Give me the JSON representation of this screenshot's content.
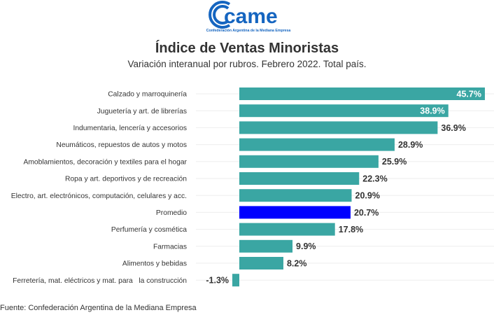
{
  "logo": {
    "name": "came",
    "tagline": "Confederación Argentina de la Mediana Empresa",
    "color": "#1565c0"
  },
  "header": {
    "title": "Índice de Ventas Minoristas",
    "subtitle": "Variación interanual por rubros. Febrero 2022. Total país."
  },
  "footer": {
    "source": "Fuente: Confederación Argentina de la Mediana Empresa"
  },
  "chart_data": {
    "type": "bar",
    "orientation": "horizontal",
    "title": "Índice de Ventas Minoristas",
    "subtitle": "Variación interanual por rubros. Febrero 2022. Total país.",
    "xlabel": "",
    "ylabel": "",
    "unit": "%",
    "xlim": [
      -1.3,
      45.7
    ],
    "grid": true,
    "legend": "none",
    "categories": [
      "Calzado y marroquinería",
      "Juguetería y art. de librerías",
      "Indumentaria, lencería y accesorios",
      "Neumáticos, repuestos de autos y motos",
      "Amoblamientos, decoración y textiles para el hogar",
      "Ropa y art. deportivos y de recreación",
      "Electro, art. electrónicos, computación, celulares y acc.",
      "Promedio",
      "Perfumería y cosmética",
      "Farmacias",
      "Alimentos y bebidas",
      "Ferretería, mat. eléctricos y mat. para   la construcción"
    ],
    "values": [
      45.7,
      38.9,
      36.9,
      28.9,
      25.9,
      22.3,
      20.9,
      20.7,
      17.8,
      9.9,
      8.2,
      -1.3
    ],
    "value_labels": [
      "45.7%",
      "38.9%",
      "36.9%",
      "28.9%",
      "25.9%",
      "22.3%",
      "20.9%",
      "20.7%",
      "17.8%",
      "9.9%",
      "8.2%",
      "-1.3%"
    ],
    "colors": {
      "default": "#3aa6a3",
      "highlight": "#0000ff",
      "highlight_category": "Promedio",
      "label_inside": "#ffffff",
      "label_outside": "#333333",
      "grid": "#eeeeee"
    }
  }
}
